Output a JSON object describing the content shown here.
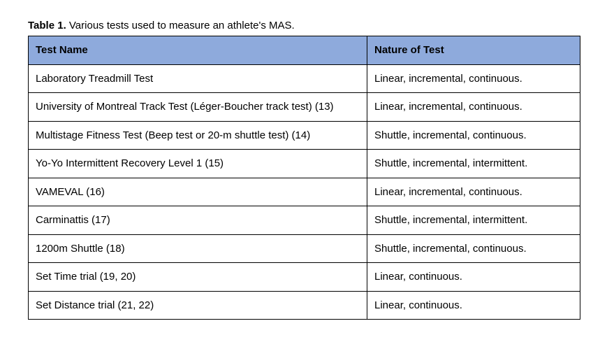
{
  "caption": {
    "label": "Table 1.",
    "text": " Various tests used to measure an athlete's MAS."
  },
  "table": {
    "header_bg": "#8eaadc",
    "columns": [
      "Test Name",
      "Nature of Test"
    ],
    "rows": [
      [
        "Laboratory Treadmill Test",
        "Linear, incremental, continuous."
      ],
      [
        "University of Montreal Track Test (Léger-Boucher track test) (13)",
        "Linear, incremental, continuous."
      ],
      [
        "Multistage Fitness Test (Beep test or 20-m shuttle test) (14)",
        "Shuttle, incremental, continuous."
      ],
      [
        "Yo-Yo Intermittent Recovery Level 1 (15)",
        "Shuttle, incremental, intermittent."
      ],
      [
        "VAMEVAL (16)",
        "Linear, incremental, continuous."
      ],
      [
        "Carminattis (17)",
        "Shuttle, incremental, intermittent."
      ],
      [
        "1200m Shuttle (18)",
        "Shuttle, incremental, continuous."
      ],
      [
        "Set Time trial (19, 20)",
        "Linear, continuous."
      ],
      [
        "Set Distance trial (21, 22)",
        "Linear, continuous."
      ]
    ]
  }
}
